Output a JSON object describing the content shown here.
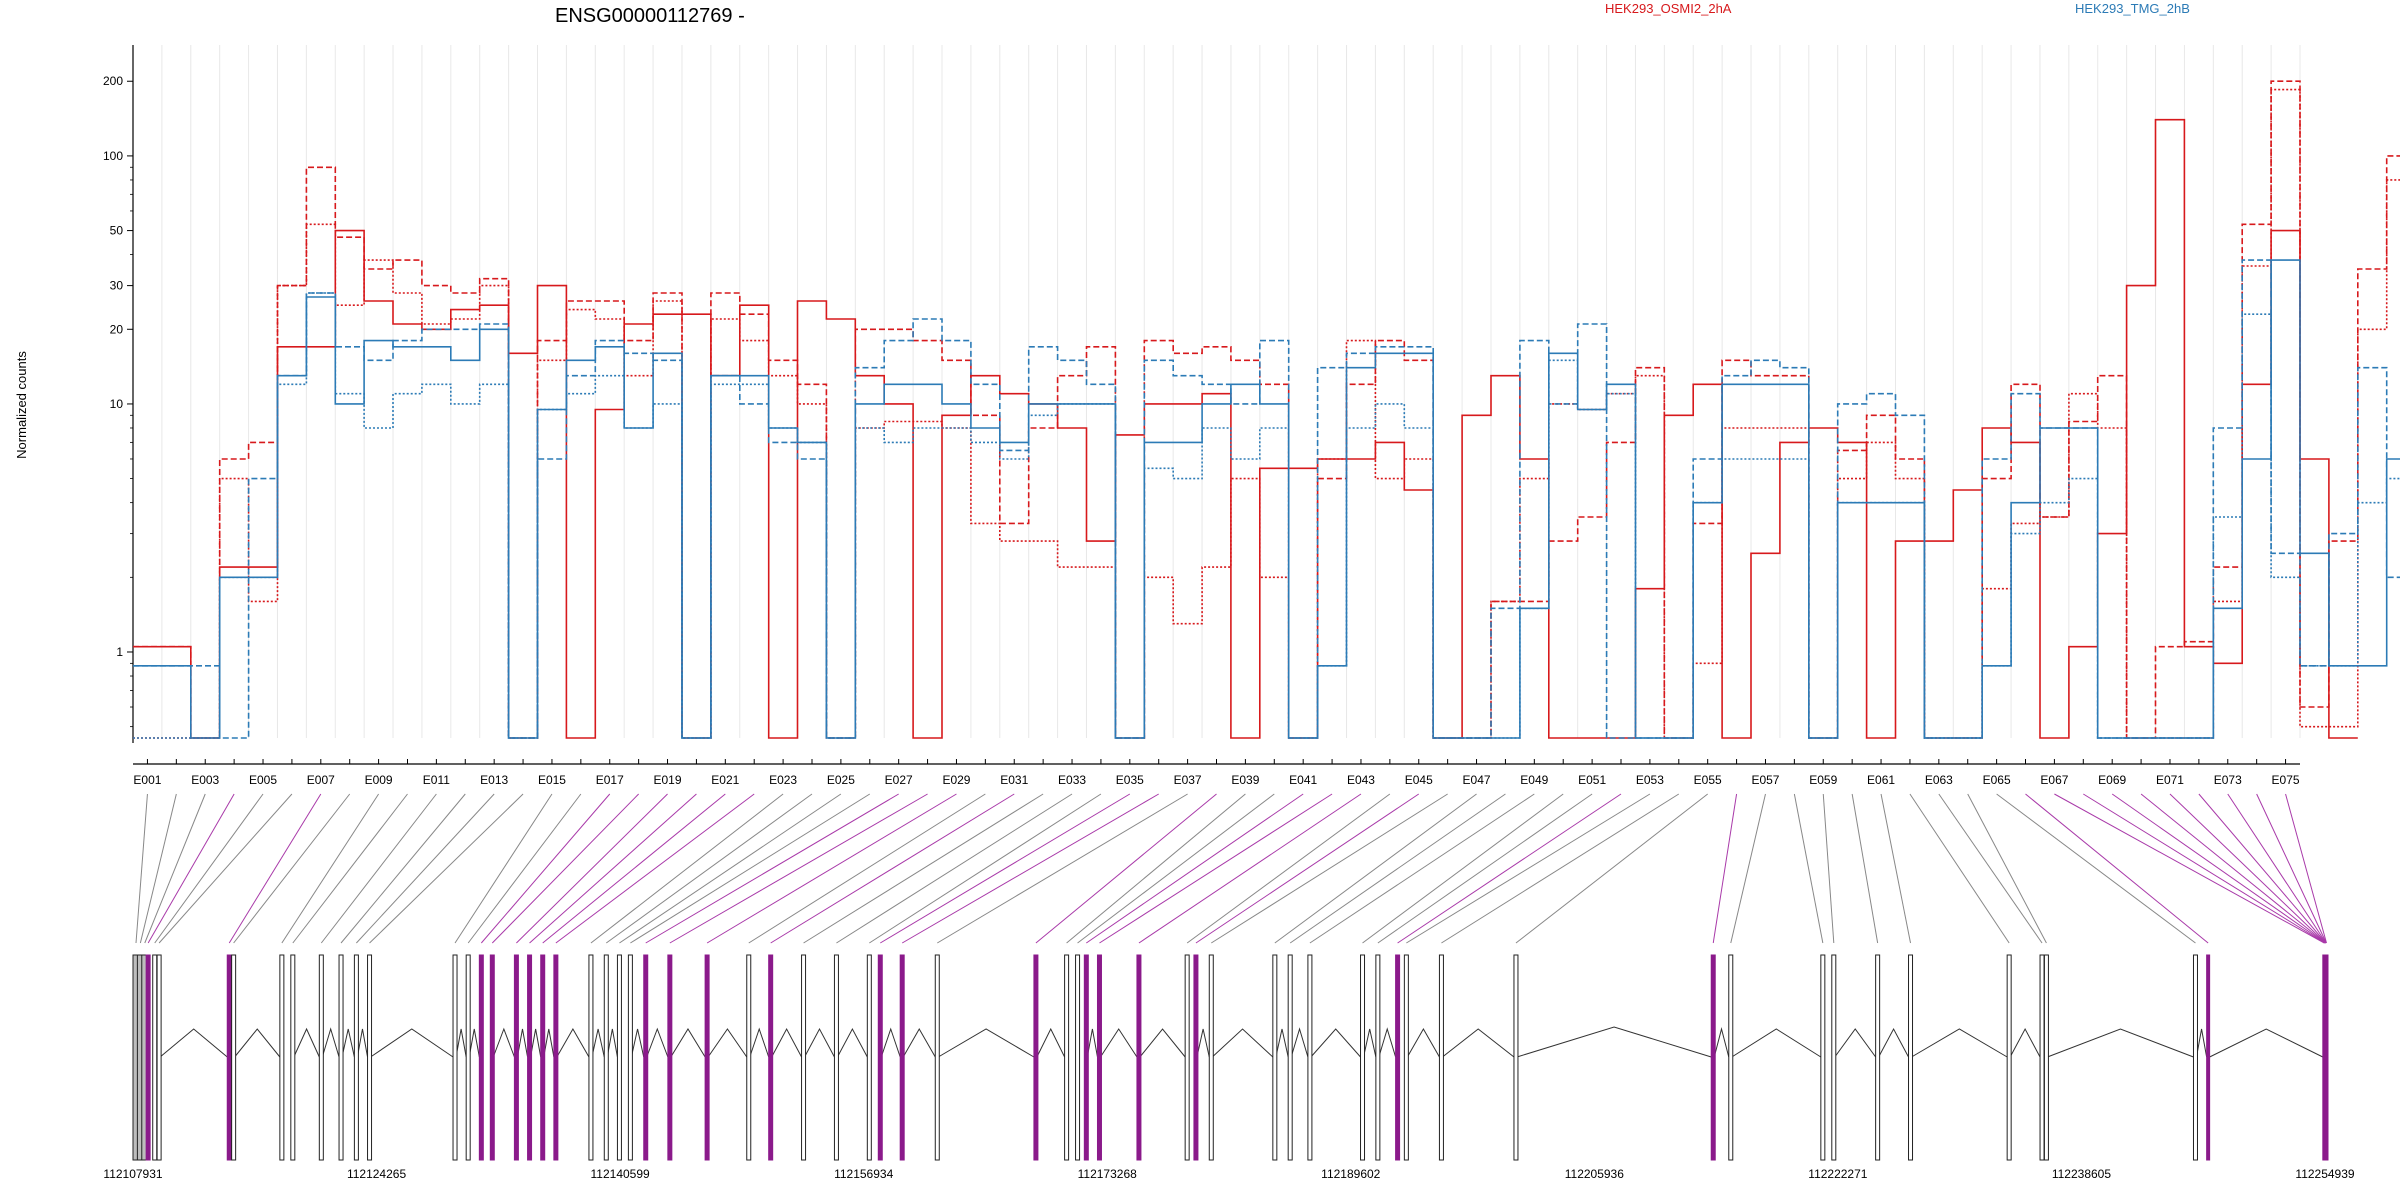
{
  "chart_data": {
    "type": "line",
    "title": "ENSG00000112769 -",
    "ylabel": "Normalized counts",
    "yscale": "log",
    "ylim": [
      0.45,
      280
    ],
    "yticks": [
      "1",
      "10",
      "20",
      "30",
      "50",
      "100",
      "200"
    ],
    "ytick_values": [
      1,
      10,
      20,
      30,
      50,
      100,
      200
    ],
    "legend": [
      {
        "name": "HEK293_OSMI2_2hA",
        "color": "#d7191c"
      },
      {
        "name": "HEK293_TMG_2hB",
        "color": "#2c7bb6"
      }
    ],
    "legend_placement": "top-right",
    "grid": "vertical",
    "exon_labels": [
      "E001",
      "E003",
      "E005",
      "E007",
      "E009",
      "E011",
      "E013",
      "E015",
      "E017",
      "E019",
      "E021",
      "E023",
      "E025",
      "E027",
      "E029",
      "E031",
      "E033",
      "E035",
      "E037",
      "E039",
      "E041",
      "E043",
      "E045",
      "E047",
      "E049",
      "E051",
      "E053",
      "E055",
      "E057",
      "E059",
      "E061",
      "E063",
      "E065",
      "E067",
      "E069",
      "E071",
      "E073",
      "E075"
    ],
    "exon_count": 75,
    "series": [
      {
        "name": "HEK293_OSMI2_2hA",
        "color": "#d7191c",
        "style": "solid",
        "values": [
          1.05,
          1.05,
          0.45,
          2.2,
          2.2,
          17,
          17,
          50,
          26,
          21,
          20,
          24,
          25,
          16,
          30,
          0.45,
          9.5,
          21,
          23,
          23,
          13,
          25,
          0.45,
          26,
          22,
          13,
          10,
          0.45,
          9,
          13,
          11,
          10,
          8,
          2.8,
          7.5,
          10,
          10,
          11,
          0.45,
          5.5,
          5.5,
          6,
          6,
          7,
          4.5,
          0.45,
          9,
          13,
          6,
          0.45,
          0.45,
          0.45,
          1.8,
          9,
          12,
          0.45,
          2.5,
          7,
          8,
          7,
          0.45,
          2.8,
          2.8,
          4.5,
          8,
          7,
          0.45,
          1.05,
          3,
          30,
          140,
          1.05,
          0.9,
          12,
          50,
          6,
          0.45
        ]
      },
      {
        "name": "HEK293_OSMI2_2hA",
        "color": "#d7191c",
        "style": "dashed",
        "values": [
          1.05,
          1.05,
          0.45,
          6,
          7,
          30,
          90,
          47,
          35,
          38,
          30,
          28,
          32,
          0.45,
          18,
          26,
          26,
          18,
          28,
          0.45,
          28,
          23,
          15,
          12,
          0.45,
          20,
          20,
          18,
          15,
          9,
          3.3,
          8,
          13,
          17,
          0.45,
          18,
          16,
          17,
          15,
          12,
          0.45,
          5,
          12,
          18,
          15,
          0.45,
          0.45,
          1.6,
          1.6,
          2.8,
          3.5,
          7,
          14,
          0.45,
          3.3,
          15,
          13,
          13,
          0.45,
          6.5,
          9,
          6,
          0.45,
          0.45,
          5,
          12,
          3.5,
          8.5,
          13,
          0.45,
          1.05,
          1.1,
          2.2,
          53,
          200,
          0.6,
          2.8,
          35,
          100,
          11,
          0.45
        ]
      },
      {
        "name": "HEK293_OSMI2_2hA",
        "color": "#d7191c",
        "style": "dotted",
        "values": [
          0.45,
          0.45,
          0.45,
          5,
          1.6,
          30,
          53,
          25,
          38,
          28,
          21,
          22,
          30,
          0.45,
          15,
          24,
          22,
          13,
          26,
          0.45,
          22,
          18,
          13,
          10,
          0.45,
          8,
          8.5,
          8.5,
          8,
          3.3,
          2.8,
          2.8,
          2.2,
          2.2,
          0.45,
          2,
          1.3,
          2.2,
          5,
          2,
          0.45,
          6,
          18,
          5,
          6,
          0.45,
          0.45,
          1.6,
          5,
          10,
          9.5,
          11,
          13,
          0.45,
          0.9,
          8,
          8,
          8,
          0.45,
          5,
          7,
          5,
          0.45,
          0.45,
          1.8,
          3.3,
          3.5,
          11,
          8,
          0.45,
          0.45,
          0.45,
          1.6,
          36,
          185,
          0.5,
          0.5,
          20,
          80,
          6,
          0.45
        ]
      },
      {
        "name": "HEK293_TMG_2hB",
        "color": "#2c7bb6",
        "style": "solid",
        "values": [
          0.88,
          0.88,
          0.45,
          2,
          2,
          13,
          27,
          10,
          18,
          17,
          17,
          15,
          20,
          0.45,
          9.5,
          15,
          17,
          8,
          16,
          0.45,
          13,
          13,
          8,
          7,
          0.45,
          10,
          12,
          12,
          10,
          8,
          7,
          10,
          10,
          10,
          0.45,
          7,
          7,
          10,
          12,
          10,
          0.45,
          0.88,
          14,
          16,
          16,
          0.45,
          0.45,
          0.45,
          1.5,
          16,
          9.5,
          12,
          0.45,
          0.45,
          4,
          12,
          12,
          12,
          0.45,
          4,
          4,
          4,
          0.45,
          0.45,
          0.88,
          4,
          8,
          8,
          0.45,
          0.45,
          0.45,
          0.45,
          1.5,
          6,
          38,
          2.5,
          0.88,
          0.88,
          6,
          13,
          2,
          0.45
        ]
      },
      {
        "name": "HEK293_TMG_2hB",
        "color": "#2c7bb6",
        "style": "dashed",
        "values": [
          0.88,
          0.88,
          0.88,
          0.45,
          5,
          13,
          28,
          17,
          15,
          18,
          20,
          20,
          21,
          0.45,
          6,
          13,
          18,
          16,
          15,
          0.45,
          13,
          10,
          7,
          6,
          0.45,
          14,
          18,
          22,
          18,
          12,
          6.5,
          17,
          15,
          12,
          0.45,
          15,
          13,
          12,
          10,
          18,
          0.45,
          14,
          16,
          17,
          17,
          0.45,
          0.45,
          1.5,
          18,
          10,
          21,
          0.45,
          0.45,
          0.45,
          6,
          13,
          15,
          14,
          0.45,
          10,
          11,
          9,
          0.45,
          0.45,
          6,
          11,
          8,
          8,
          0.45,
          0.45,
          0.45,
          0.45,
          8,
          38,
          2.5,
          0.88,
          3,
          14,
          2,
          0.45,
          0.45
        ]
      },
      {
        "name": "HEK293_TMG_2hB",
        "color": "#2c7bb6",
        "style": "dotted",
        "values": [
          0.45,
          0.45,
          0.45,
          2,
          2,
          12,
          28,
          11,
          8,
          11,
          12,
          10,
          12,
          0.45,
          9.5,
          11,
          13,
          8,
          10,
          0.45,
          12,
          12,
          8,
          7,
          0.45,
          8,
          7,
          8,
          8,
          7,
          6,
          9,
          10,
          10,
          0.45,
          5.5,
          5,
          8,
          6,
          8,
          0.45,
          0.88,
          8,
          10,
          8,
          0.45,
          0.45,
          0.45,
          1.5,
          15,
          9.5,
          11,
          0.45,
          0.45,
          4,
          6,
          6,
          6,
          0.45,
          4,
          4,
          4,
          0.45,
          0.45,
          0.88,
          3,
          4,
          5,
          0.45,
          0.45,
          0.45,
          0.45,
          3.5,
          23,
          2,
          0.88,
          0.88,
          4,
          5,
          2,
          0.45
        ]
      }
    ],
    "gene_model": {
      "coordinates": [
        "112107931",
        "112124265",
        "112140599",
        "112156934",
        "112173268",
        "112189602",
        "112205936",
        "112222271",
        "112238605",
        "112254939"
      ],
      "highlight_color": "#8b1a8b",
      "highlighted_exons": [
        4,
        7,
        17,
        18,
        19,
        20,
        21,
        22,
        27,
        28,
        29,
        31,
        35,
        36,
        38,
        41,
        42,
        43,
        45,
        52,
        56,
        66,
        67,
        68,
        69,
        70,
        71,
        72,
        73,
        74,
        75
      ]
    }
  }
}
